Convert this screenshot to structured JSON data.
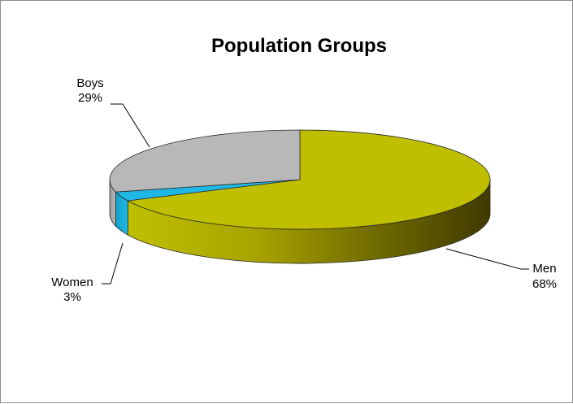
{
  "chart_data": {
    "type": "pie",
    "title": "Population Groups",
    "style": "3d",
    "categories": [
      "Men",
      "Women",
      "Boys"
    ],
    "values": [
      68,
      3,
      29
    ],
    "value_format": "percent",
    "colors": {
      "Men": "#bfbf00",
      "Women": "#1fb8e6",
      "Boys": "#b8b8b8"
    },
    "data_labels": [
      {
        "category": "Men",
        "name": "Men",
        "value": "68%"
      },
      {
        "category": "Women",
        "name": "Women",
        "value": "3%"
      },
      {
        "category": "Boys",
        "name": "Boys",
        "value": "29%"
      }
    ],
    "legend": "none"
  }
}
